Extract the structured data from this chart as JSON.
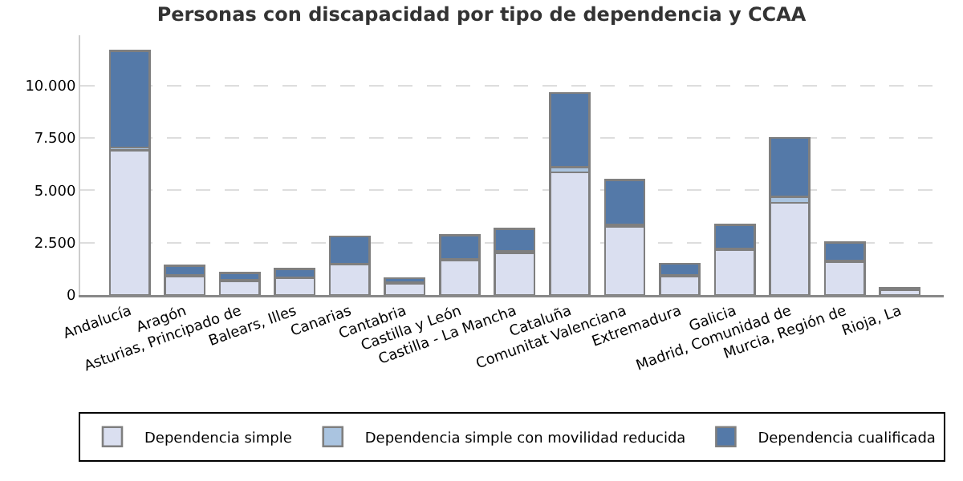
{
  "chart_data": {
    "type": "bar",
    "title": "Personas con discapacidad por tipo de dependencia y CCAA",
    "categories": [
      "Andalucía",
      "Aragón",
      "Asturias, Principado de",
      "Balears, Illes",
      "Canarias",
      "Cantabria",
      "Castilla y León",
      "Castilla - La Mancha",
      "Cataluña",
      "Comunitat Valenciana",
      "Extremadura",
      "Galicia",
      "Madrid, Comunidad de",
      "Murcia, Región de",
      "Rioja, La"
    ],
    "stacked": true,
    "series": [
      {
        "name": "Dependencia simple",
        "color": "#dadff0",
        "values": [
          6900,
          900,
          650,
          800,
          1450,
          550,
          1650,
          2000,
          5850,
          3250,
          900,
          2150,
          4400,
          1600,
          250
        ]
      },
      {
        "name": "Dependencia simple con movilidad reducida",
        "color": "#aac4e0",
        "values": [
          150,
          50,
          50,
          50,
          50,
          50,
          50,
          100,
          250,
          100,
          50,
          50,
          300,
          50,
          50
        ]
      },
      {
        "name": "Dependencia cualificada",
        "color": "#5479a8",
        "values": [
          4600,
          450,
          350,
          400,
          1300,
          200,
          1150,
          1050,
          3550,
          2150,
          550,
          1150,
          2800,
          850,
          50
        ]
      }
    ],
    "ylim": [
      0,
      12400
    ],
    "yticks": [
      0,
      {
        "value": 2500,
        "label": "2.500"
      },
      {
        "value": 5000,
        "label": "5.000"
      },
      {
        "value": 7500,
        "label": "7.500"
      },
      {
        "value": 10000,
        "label": "10.000"
      }
    ],
    "grid": "y",
    "legend": "bottom"
  }
}
